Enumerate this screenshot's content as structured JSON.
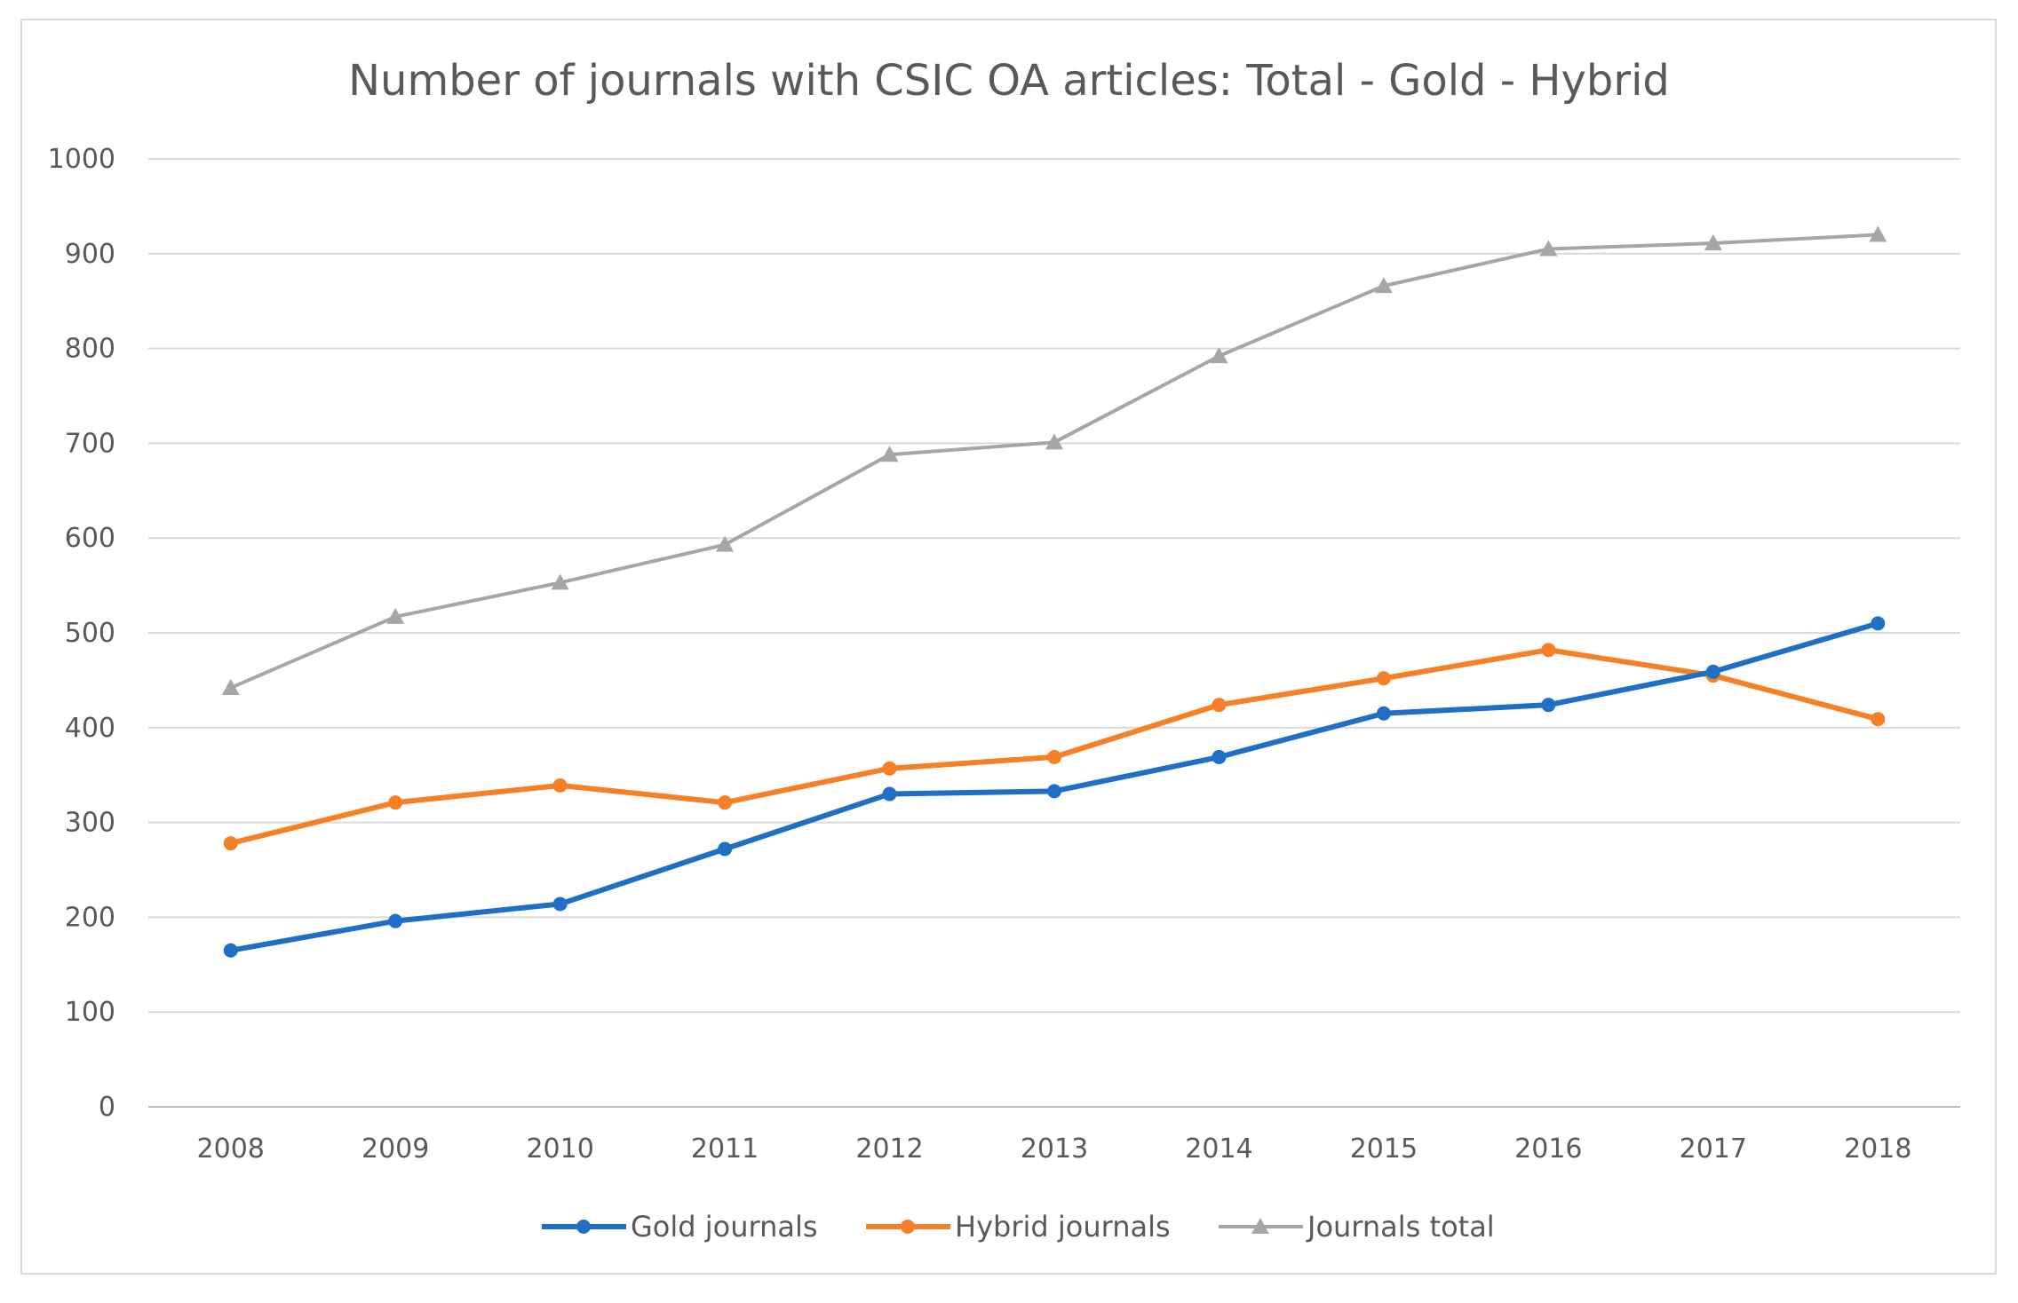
{
  "chart_data": {
    "type": "line",
    "title": "Number of journals with CSIC OA articles: Total - Gold - Hybrid",
    "xlabel": "",
    "ylabel": "",
    "categories": [
      "2008",
      "2009",
      "2010",
      "2011",
      "2012",
      "2013",
      "2014",
      "2015",
      "2016",
      "2017",
      "2018"
    ],
    "ylim": [
      0,
      1000
    ],
    "yticks": [
      "0",
      "100",
      "200",
      "300",
      "400",
      "500",
      "600",
      "700",
      "800",
      "900",
      "1000"
    ],
    "grid": true,
    "legend_position": "bottom",
    "series": [
      {
        "name": "Gold journals",
        "color": "#1f6fc6",
        "marker": "circle",
        "values": [
          165,
          196,
          214,
          272,
          330,
          333,
          369,
          415,
          424,
          459,
          510
        ]
      },
      {
        "name": "Hybrid journals",
        "color": "#f58025",
        "marker": "circle",
        "values": [
          278,
          321,
          339,
          321,
          357,
          369,
          424,
          452,
          482,
          455,
          409
        ]
      },
      {
        "name": "Journals total",
        "color": "#a6a6a6",
        "marker": "triangle",
        "values": [
          442,
          517,
          553,
          593,
          688,
          701,
          792,
          866,
          905,
          911,
          920
        ]
      }
    ]
  }
}
